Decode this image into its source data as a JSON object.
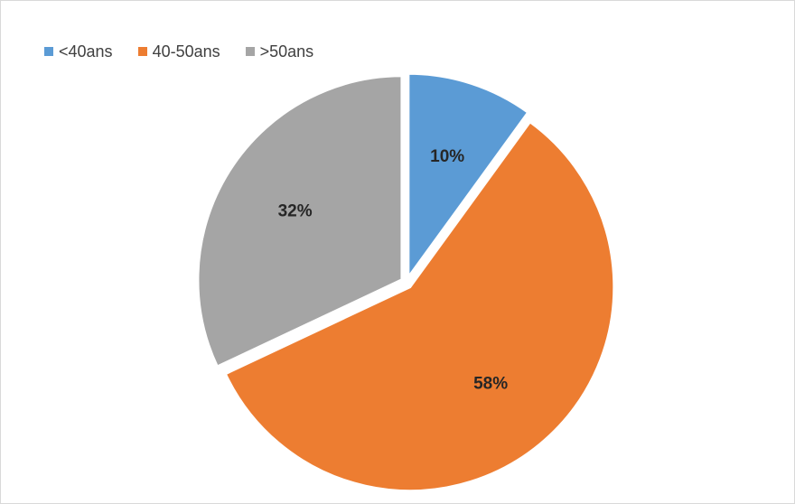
{
  "chart_data": {
    "type": "pie",
    "categories": [
      "<40ans",
      "40-50ans",
      ">50ans"
    ],
    "values": [
      10,
      58,
      32
    ],
    "value_labels": [
      "10%",
      "58%",
      "32%"
    ],
    "colors": [
      "#5b9bd5",
      "#ed7d31",
      "#a5a5a5"
    ],
    "legend_position": "top-left",
    "exploded": true
  }
}
